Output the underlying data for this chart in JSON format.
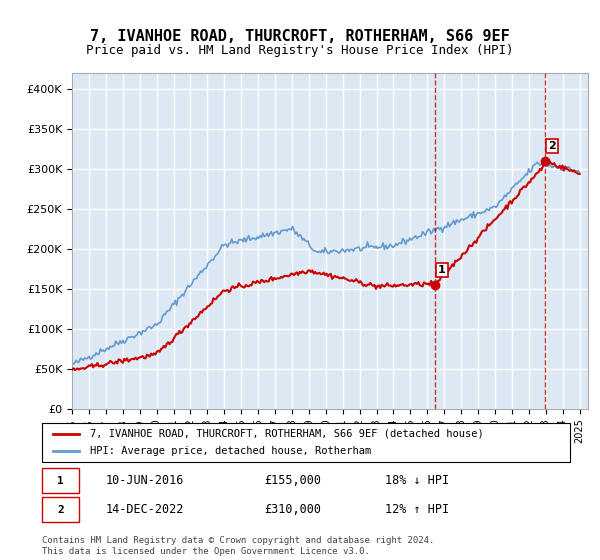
{
  "title": "7, IVANHOE ROAD, THURCROFT, ROTHERHAM, S66 9EF",
  "subtitle": "Price paid vs. HM Land Registry's House Price Index (HPI)",
  "ylabel_ticks": [
    "£0",
    "£50K",
    "£100K",
    "£150K",
    "£200K",
    "£250K",
    "£300K",
    "£350K",
    "£400K"
  ],
  "ytick_values": [
    0,
    50000,
    100000,
    150000,
    200000,
    250000,
    300000,
    350000,
    400000
  ],
  "ylim": [
    0,
    420000
  ],
  "xlim_start": 1995.0,
  "xlim_end": 2025.5,
  "bg_color": "#dce9f5",
  "grid_color": "#ffffff",
  "sale1": {
    "date_num": 2016.44,
    "price": 155000,
    "label": "1"
  },
  "sale2": {
    "date_num": 2022.95,
    "price": 310000,
    "label": "2"
  },
  "legend_line1": "7, IVANHOE ROAD, THURCROFT, ROTHERHAM, S66 9EF (detached house)",
  "legend_line2": "HPI: Average price, detached house, Rotherham",
  "table_row1": [
    "1",
    "10-JUN-2016",
    "£155,000",
    "18% ↓ HPI"
  ],
  "table_row2": [
    "2",
    "14-DEC-2022",
    "£310,000",
    "12% ↑ HPI"
  ],
  "footer": "Contains HM Land Registry data © Crown copyright and database right 2024.\nThis data is licensed under the Open Government Licence v3.0.",
  "line_red_color": "#cc0000",
  "line_blue_color": "#6699cc",
  "marker_color_red": "#cc0000",
  "dashed_line_color": "#cc0000"
}
